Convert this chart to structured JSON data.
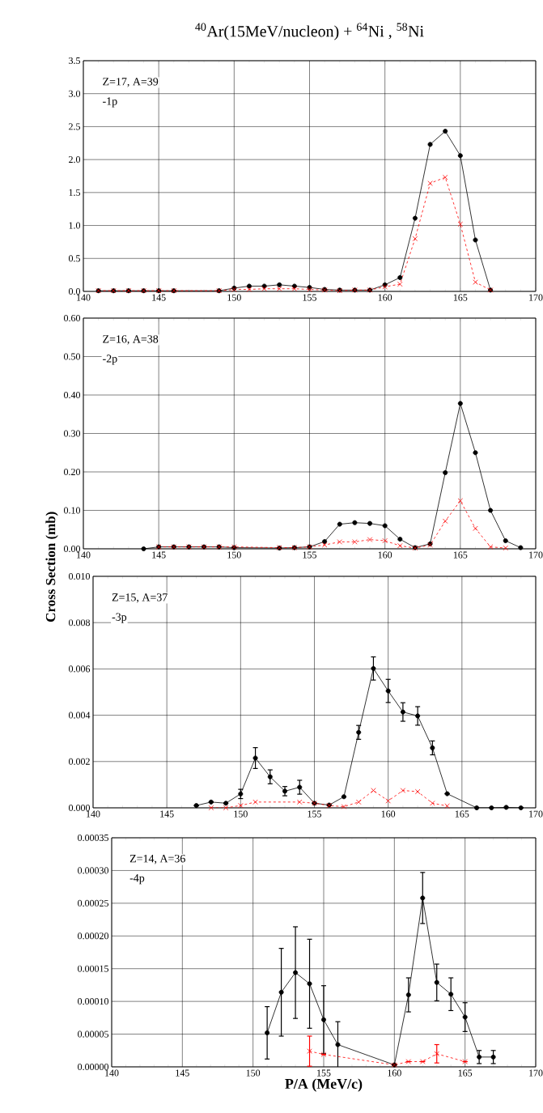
{
  "chart_data": [
    {
      "type": "line",
      "title": "$^{40}$Ar(15MeV/nucleon) + $^{64}$Ni , $^{58}$Ni",
      "annotations": [
        "Z=17, A=39",
        "-1p"
      ],
      "grid": true,
      "xlim": [
        140,
        170
      ],
      "xticks": [
        140,
        145,
        150,
        155,
        160,
        165,
        170
      ],
      "ylim": [
        0,
        3.5
      ],
      "yticks": [
        {
          "value": 0,
          "label": "0.0"
        },
        {
          "value": 0.5,
          "label": "0.5"
        },
        {
          "value": 1,
          "label": "1.0"
        },
        {
          "value": 1.5,
          "label": "1.5"
        },
        {
          "value": 2,
          "label": "2.0"
        },
        {
          "value": 2.5,
          "label": "2.5"
        },
        {
          "value": 3,
          "label": "3.0"
        },
        {
          "value": 3.5,
          "label": "3.5"
        }
      ],
      "series": [
        {
          "color": "#000000",
          "marker": "circle",
          "line_style": "solid",
          "x": [
            141,
            142,
            143,
            144,
            145,
            146,
            149,
            150,
            151,
            152,
            153,
            154,
            155,
            156,
            157,
            158,
            159,
            160,
            161,
            162,
            163,
            164,
            165,
            166,
            167
          ],
          "values": [
            0.01,
            0.01,
            0.01,
            0.01,
            0.01,
            0.01,
            0.01,
            0.05,
            0.08,
            0.08,
            0.1,
            0.08,
            0.06,
            0.03,
            0.02,
            0.02,
            0.02,
            0.1,
            0.21,
            1.11,
            2.23,
            2.43,
            2.06,
            0.78,
            0.02
          ]
        },
        {
          "color": "#ff0000",
          "marker": "cross",
          "line_style": "dashed",
          "x": [
            141,
            142,
            143,
            144,
            145,
            146,
            149,
            150,
            151,
            152,
            153,
            154,
            155,
            156,
            157,
            158,
            159,
            160,
            161,
            162,
            163,
            164,
            165,
            166,
            167
          ],
          "values": [
            0.01,
            0.01,
            0.01,
            0.01,
            0.01,
            0.01,
            0.01,
            0.03,
            0.03,
            0.04,
            0.04,
            0.04,
            0.03,
            0.02,
            0.01,
            0.02,
            0.02,
            0.07,
            0.11,
            0.8,
            1.64,
            1.73,
            1.02,
            0.14,
            0.02
          ]
        }
      ]
    },
    {
      "type": "line",
      "ylabel": "Cross Section (mb)",
      "annotations": [
        "Z=16, A=38",
        "-2p"
      ],
      "grid": true,
      "xlim": [
        140,
        170
      ],
      "xticks": [
        140,
        145,
        150,
        155,
        160,
        165,
        170
      ],
      "ylim": [
        0,
        0.6
      ],
      "yticks": [
        {
          "value": 0,
          "label": "0.00"
        },
        {
          "value": 0.1,
          "label": "0.10"
        },
        {
          "value": 0.2,
          "label": "0.20"
        },
        {
          "value": 0.3,
          "label": "0.30"
        },
        {
          "value": 0.4,
          "label": "0.40"
        },
        {
          "value": 0.5,
          "label": "0.50"
        },
        {
          "value": 0.6,
          "label": "0.60"
        }
      ],
      "series": [
        {
          "color": "#000000",
          "marker": "circle",
          "line_style": "solid",
          "x": [
            144,
            145,
            146,
            147,
            148,
            149,
            150,
            153,
            154,
            155,
            156,
            157,
            158,
            159,
            160,
            161,
            162,
            163,
            164,
            165,
            166,
            167,
            168,
            169
          ],
          "values": [
            0.0,
            0.005,
            0.005,
            0.005,
            0.005,
            0.005,
            0.003,
            0.002,
            0.003,
            0.005,
            0.019,
            0.064,
            0.068,
            0.066,
            0.06,
            0.025,
            0.003,
            0.013,
            0.198,
            0.378,
            0.25,
            0.1,
            0.021,
            0.003
          ]
        },
        {
          "color": "#ff0000",
          "marker": "cross",
          "line_style": "dashed",
          "x": [
            145,
            146,
            147,
            148,
            149,
            150,
            153,
            154,
            155,
            156,
            157,
            158,
            159,
            160,
            161,
            162,
            163,
            164,
            165,
            166,
            167,
            168
          ],
          "values": [
            0.005,
            0.005,
            0.005,
            0.005,
            0.005,
            0.005,
            0.003,
            0.003,
            0.005,
            0.01,
            0.018,
            0.018,
            0.024,
            0.021,
            0.008,
            0.002,
            0.01,
            0.072,
            0.125,
            0.053,
            0.005,
            0.002
          ]
        }
      ]
    },
    {
      "type": "line",
      "annotations": [
        "Z=15, A=37",
        "-3p"
      ],
      "grid": true,
      "xlim": [
        140,
        170
      ],
      "xticks": [
        140,
        145,
        150,
        155,
        160,
        165,
        170
      ],
      "ylim": [
        0,
        0.01
      ],
      "yticks": [
        {
          "value": 0,
          "label": "0.000"
        },
        {
          "value": 0.002,
          "label": "0.002"
        },
        {
          "value": 0.004,
          "label": "0.004"
        },
        {
          "value": 0.006,
          "label": "0.006"
        },
        {
          "value": 0.008,
          "label": "0.008"
        },
        {
          "value": 0.01,
          "label": "0.010"
        }
      ],
      "series": [
        {
          "color": "#000000",
          "marker": "circle",
          "line_style": "solid",
          "x": [
            147,
            148,
            149,
            150,
            151,
            152,
            153,
            154,
            155,
            156,
            157,
            158,
            159,
            160,
            161,
            162,
            163,
            164,
            166,
            167,
            168,
            169
          ],
          "values": [
            0.0001,
            0.00025,
            0.0002,
            0.0006,
            0.00215,
            0.00134,
            0.00072,
            0.00089,
            0.0002,
            0.00012,
            0.00048,
            0.00326,
            0.00602,
            0.00505,
            0.00414,
            0.00397,
            0.00259,
            0.00061,
            0.0,
            0.0,
            2e-05,
            0.0
          ],
          "errors": [
            null,
            null,
            null,
            0.0002,
            0.00045,
            0.0003,
            0.0002,
            0.0003,
            null,
            null,
            null,
            0.0003,
            0.0005,
            0.0005,
            0.0004,
            0.0004,
            0.0003,
            null,
            null,
            null,
            null,
            null
          ]
        },
        {
          "color": "#ff0000",
          "marker": "cross",
          "line_style": "dashed",
          "x": [
            148,
            149,
            150,
            151,
            154,
            155,
            156,
            157,
            158,
            159,
            160,
            161,
            162,
            163,
            164
          ],
          "values": [
            0.0,
            0.0,
            0.0001,
            0.00025,
            0.00025,
            0.0002,
            0.0001,
            5e-05,
            0.00025,
            0.00075,
            0.0003,
            0.00075,
            0.0007,
            0.0002,
            8e-05
          ]
        }
      ]
    },
    {
      "type": "line",
      "xlabel": "P/A (MeV/c)",
      "annotations": [
        "Z=14, A=36",
        "-4p"
      ],
      "grid": true,
      "xlim": [
        140,
        170
      ],
      "xticks": [
        140,
        145,
        150,
        155,
        160,
        165,
        170
      ],
      "ylim": [
        0,
        0.00035
      ],
      "yticks": [
        {
          "value": 0,
          "label": "0.00000"
        },
        {
          "value": 5e-05,
          "label": "0.00005"
        },
        {
          "value": 0.0001,
          "label": "0.00010"
        },
        {
          "value": 0.00015,
          "label": "0.00015"
        },
        {
          "value": 0.0002,
          "label": "0.00020"
        },
        {
          "value": 0.00025,
          "label": "0.00025"
        },
        {
          "value": 0.0003,
          "label": "0.00030"
        },
        {
          "value": 0.00035,
          "label": "0.00035"
        }
      ],
      "series": [
        {
          "color": "#000000",
          "marker": "circle",
          "line_style": "solid",
          "x": [
            151,
            152,
            153,
            154,
            155,
            156,
            160,
            161,
            162,
            163,
            164,
            165,
            166,
            167
          ],
          "values": [
            5.2e-05,
            0.000114,
            0.000144,
            0.000127,
            7.2e-05,
            3.4e-05,
            3e-06,
            0.00011,
            0.000258,
            0.000129,
            0.000111,
            7.6e-05,
            1.5e-05,
            1.5e-05
          ],
          "errors": [
            4e-05,
            6.7e-05,
            7e-05,
            6.8e-05,
            5.2e-05,
            3.5e-05,
            null,
            2.6e-05,
            3.9e-05,
            2.8e-05,
            2.5e-05,
            2.2e-05,
            1e-05,
            1e-05
          ]
        },
        {
          "color": "#ff0000",
          "marker": "cross",
          "line_style": "dashed",
          "x": [
            154,
            155,
            160,
            161,
            162,
            163,
            165
          ],
          "values": [
            2.4e-05,
            1.9e-05,
            3e-06,
            8e-06,
            8e-06,
            2e-05,
            8e-06
          ],
          "errors": [
            2.3e-05,
            null,
            null,
            null,
            null,
            1.4e-05,
            null
          ]
        }
      ]
    }
  ]
}
